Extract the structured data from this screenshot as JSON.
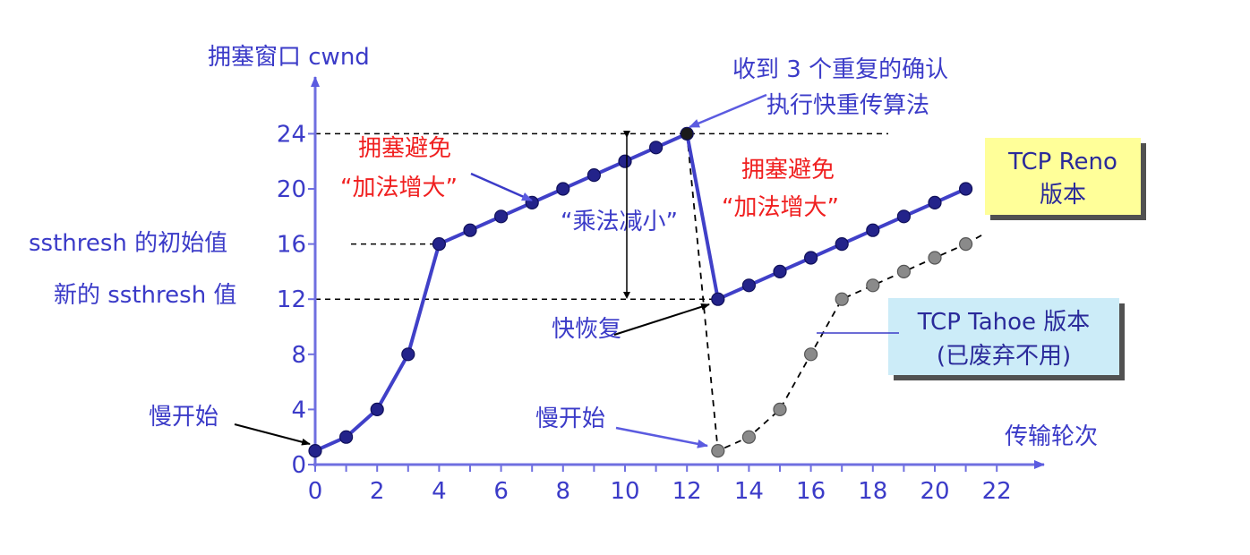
{
  "chart_data": {
    "type": "line",
    "ylabel": "拥塞窗口 cwnd",
    "xlabel": "传输轮次",
    "xlim": [
      0,
      22
    ],
    "ylim": [
      0,
      24
    ],
    "x_ticks": [
      "0",
      "2",
      "4",
      "6",
      "8",
      "10",
      "12",
      "14",
      "16",
      "18",
      "20",
      "22"
    ],
    "y_ticks": [
      "0",
      "4",
      "8",
      "12",
      "16",
      "20",
      "24"
    ],
    "series": [
      {
        "name": "TCP Reno 版本",
        "style": "solid",
        "color": "#3b3bc8",
        "x": [
          0,
          1,
          2,
          3,
          4,
          5,
          6,
          7,
          8,
          9,
          10,
          11,
          12,
          13,
          14,
          15,
          16,
          17,
          18,
          19,
          20,
          21
        ],
        "y": [
          1,
          2,
          4,
          8,
          16,
          17,
          18,
          19,
          20,
          21,
          22,
          23,
          24,
          12,
          13,
          14,
          15,
          16,
          17,
          18,
          19,
          20
        ]
      },
      {
        "name": "TCP Tahoe 版本 (已废弃不用)",
        "style": "dashed",
        "color": "#808080",
        "x": [
          12,
          13,
          14,
          15,
          16,
          17,
          18,
          19,
          20,
          21
        ],
        "y": [
          24,
          1,
          2,
          4,
          8,
          12,
          13,
          14,
          15,
          16
        ]
      }
    ],
    "ref_lines": {
      "y24": 24,
      "y16": 16,
      "y12": 12
    },
    "annotations": {
      "ssthresh_initial": "ssthresh 的初始值",
      "ssthresh_new": "新的 ssthresh 值",
      "slow_start_1": "慢开始",
      "slow_start_2": "慢开始",
      "fast_recovery": "快恢复",
      "multiplicative": "“乘法减小”",
      "ca_1_line1": "拥塞避免",
      "ca_1_line2": "“加法增大”",
      "ca_2_line1": "拥塞避免",
      "ca_2_line2": "“加法增大”",
      "three_acks_line1": "收到 3 个重复的确认",
      "three_acks_line2": "执行快重传算法",
      "reno_line1": "TCP Reno",
      "reno_line2": "版本",
      "tahoe_line1": "TCP Tahoe 版本",
      "tahoe_line2": "(已废弃不用)"
    },
    "colors": {
      "axis": "#6f6fe0",
      "reno_box": "#ffff99",
      "tahoe_box": "#ccecf8",
      "annotation_red": "#f02020"
    }
  }
}
